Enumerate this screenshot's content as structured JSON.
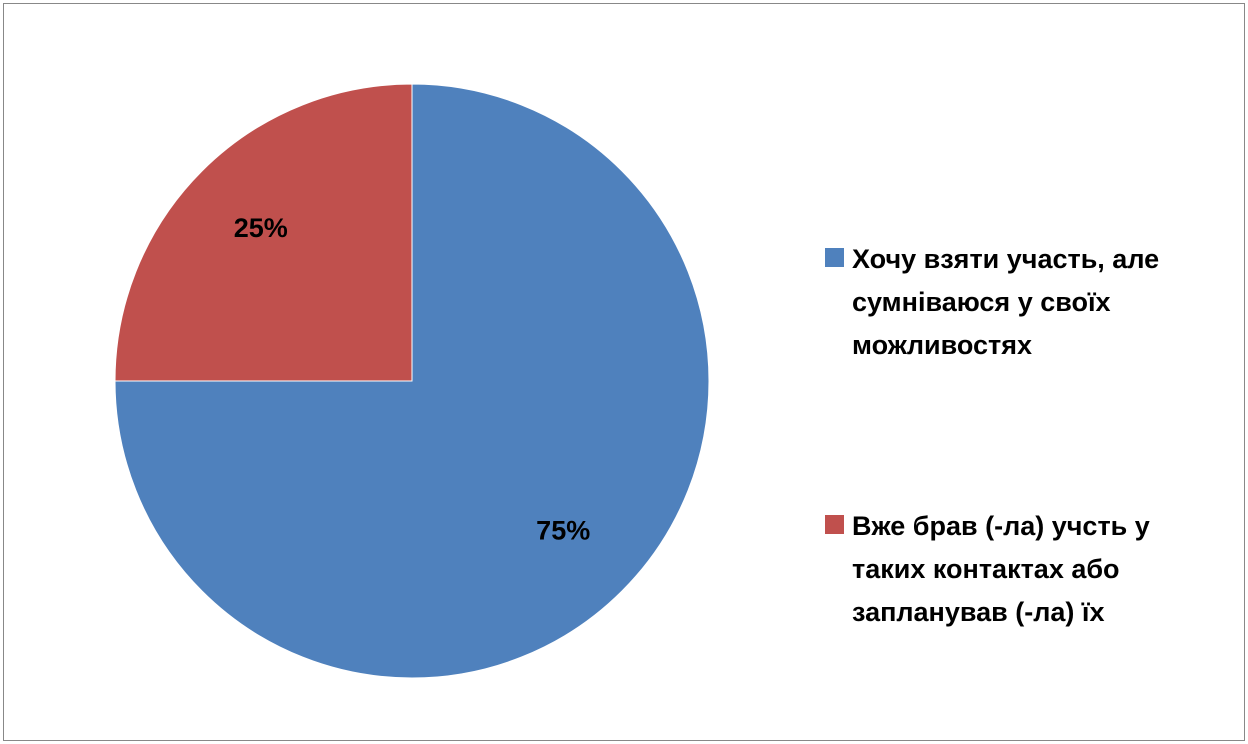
{
  "chart_data": {
    "type": "pie",
    "categories": [
      "Хочу взяти участь, але сумніваюся у своїх можливостях",
      "Вже брав (-ла) учсть у таких контактах або запланував (-ла) їх"
    ],
    "values": [
      75,
      25
    ],
    "labels": [
      "75%",
      "25%"
    ],
    "colors": [
      "#4F81BD",
      "#C0504D"
    ],
    "legend_position": "right",
    "start_angle_deg": 0,
    "direction": "clockwise"
  },
  "legend": {
    "items": [
      {
        "text": "Хочу взяти участь, але\nсумніваюся у своїх\nможливостях",
        "color": "#4F81BD"
      },
      {
        "text": "Вже брав (-ла) учсть у\nтаких контактах або\nзапланував (-ла) їх",
        "color": "#C0504D"
      }
    ]
  }
}
